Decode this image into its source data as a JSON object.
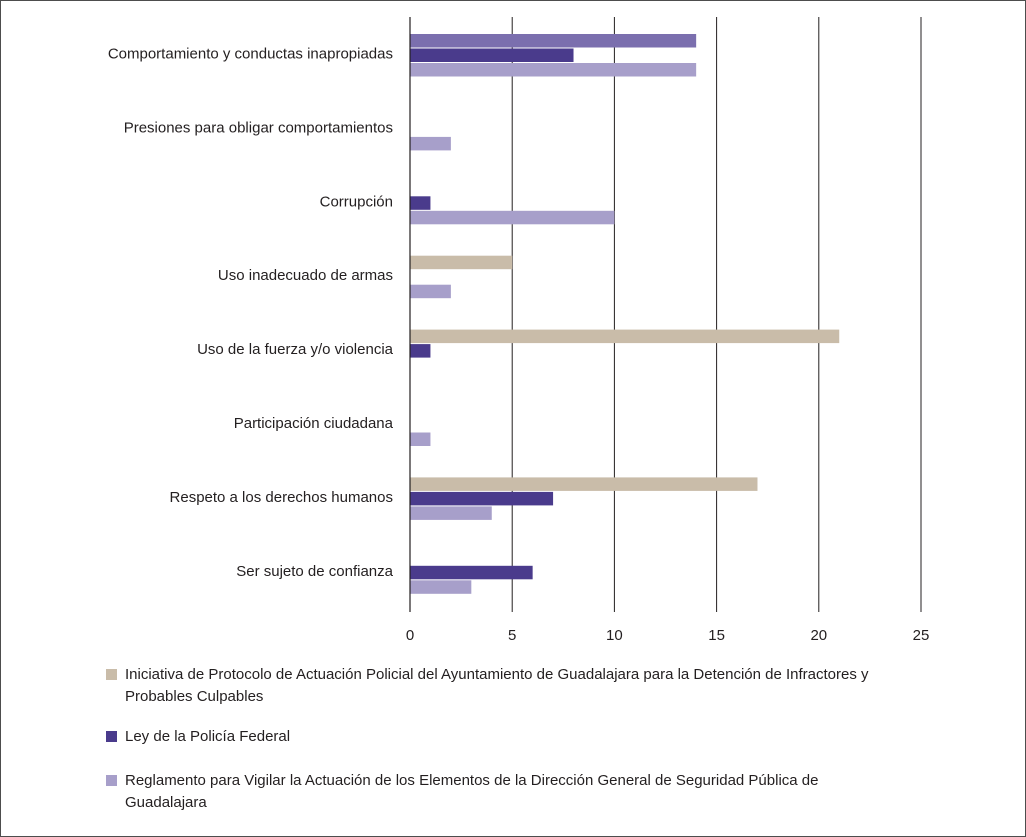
{
  "chart_data": {
    "type": "bar",
    "orientation": "horizontal",
    "categories": [
      "Comportamiento y conductas inapropiadas",
      "Presiones para obligar comportamientos",
      "Corrupción",
      "Uso inadecuado de armas",
      "Uso de la fuerza y/o violencia",
      "Participación ciudadana",
      "Respeto a los derechos humanos",
      "Ser sujeto de confianza"
    ],
    "series": [
      {
        "name": "Iniciativa de Protocolo de Actuación Policial del Ayuntamiento de Guadalajara para la Detención de Infractores y Probables Culpables",
        "color": "#c9bca9",
        "values": [
          14,
          0,
          0,
          5,
          21,
          0,
          17,
          0
        ]
      },
      {
        "name": "Ley de la Policía Federal",
        "color": "#4a3b8c",
        "values": [
          8,
          0,
          1,
          0,
          1,
          0,
          7,
          6
        ]
      },
      {
        "name": "Reglamento para Vigilar la Actuación de los Elementos de la Dirección General de Seguridad Pública de Guadalajara",
        "color": "#a79fca",
        "values": [
          14,
          2,
          10,
          2,
          0,
          1,
          4,
          3
        ]
      }
    ],
    "xlim": [
      0,
      25
    ],
    "xticks": [
      0,
      5,
      10,
      15,
      20,
      25
    ],
    "title": "",
    "xlabel": "",
    "ylabel": "",
    "grid": "vertical lines",
    "legend_position": "bottom",
    "first_category_first_bar_color": "#7b6fae"
  }
}
